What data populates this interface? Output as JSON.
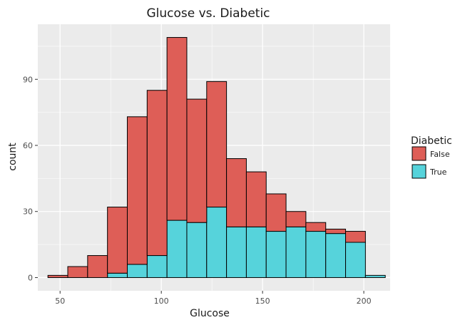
{
  "chart_data": {
    "type": "bar",
    "title": "Glucose vs. Diabetic",
    "xlabel": "Glucose",
    "ylabel": "count",
    "xlim": [
      39,
      213
    ],
    "ylim": [
      -6,
      115
    ],
    "xticks": [
      50,
      100,
      150,
      200
    ],
    "yticks": [
      0,
      30,
      60,
      90
    ],
    "grid": true,
    "stacked": true,
    "legend": {
      "title": "Diabetic",
      "position": "right"
    },
    "bin_edges": [
      44.0,
      53.8,
      63.6,
      73.4,
      83.2,
      93.0,
      102.8,
      112.6,
      122.4,
      132.2,
      142.0,
      151.8,
      161.6,
      171.4,
      181.2,
      191.0,
      200.8,
      210.6
    ],
    "series": [
      {
        "name": "True",
        "color": "#56d3db",
        "values": [
          0,
          0,
          0,
          2,
          6,
          10,
          26,
          25,
          32,
          23,
          23,
          21,
          23,
          21,
          20,
          16,
          1
        ]
      },
      {
        "name": "False",
        "color": "#de5e57",
        "values": [
          1,
          5,
          10,
          30,
          67,
          75,
          83,
          56,
          57,
          31,
          25,
          17,
          7,
          4,
          2,
          5,
          0
        ]
      }
    ]
  }
}
